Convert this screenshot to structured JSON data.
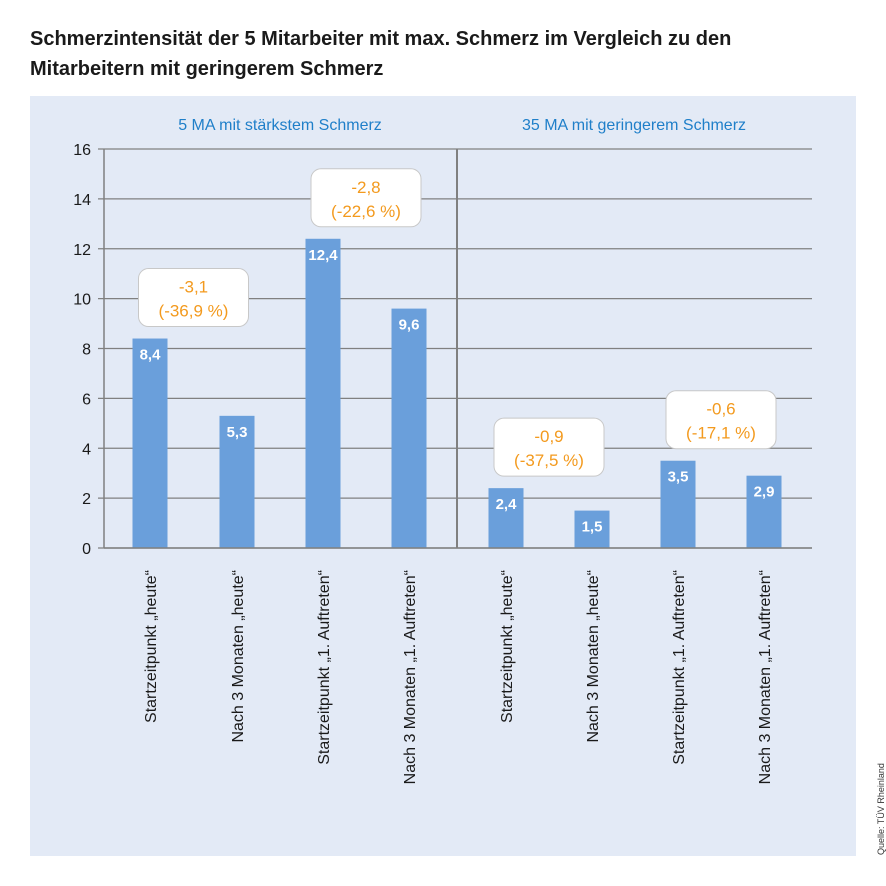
{
  "title": "Schmerzintensität der 5 Mitarbeiter mit max. Schmerz im Vergleich zu den Mitarbeitern mit geringerem Schmerz",
  "source": "Quelle: TÜV Rheinland",
  "colors": {
    "panel": "#e3eaf6",
    "bar": "#6a9fdb",
    "group_label": "#1f7fc9",
    "annotation": "#f39a1e",
    "grid": "#808080"
  },
  "chart_data": {
    "type": "bar",
    "ylim": [
      0,
      16
    ],
    "yticks": [
      "0",
      "2",
      "4",
      "6",
      "8",
      "10",
      "12",
      "14",
      "16"
    ],
    "grid": true,
    "groups": [
      {
        "label": "5 MA mit stärkstem Schmerz",
        "categories": [
          "Startzeitpunkt „heute“",
          "Nach 3 Monaten „heute“",
          "Startzeitpunkt „1. Auftreten“",
          "Nach 3 Monaten „1. Auftreten“"
        ],
        "values": [
          8.4,
          5.3,
          12.4,
          9.6
        ],
        "value_labels": [
          "8,4",
          "5,3",
          "12,4",
          "9,6"
        ]
      },
      {
        "label": "35 MA mit geringerem Schmerz",
        "categories": [
          "Startzeitpunkt „heute“",
          "Nach 3 Monaten „heute“",
          "Startzeitpunkt „1. Auftreten“",
          "Nach 3 Monaten „1. Auftreten“"
        ],
        "values": [
          2.4,
          1.5,
          3.5,
          2.9
        ],
        "value_labels": [
          "2,4",
          "1,5",
          "3,5",
          "2,9"
        ]
      }
    ],
    "annotations": [
      {
        "line1": "-3,1",
        "line2": "(-36,9 %)"
      },
      {
        "line1": "-2,8",
        "line2": "(-22,6 %)"
      },
      {
        "line1": "-0,9",
        "line2": "(-37,5 %)"
      },
      {
        "line1": "-0,6",
        "line2": "(-17,1 %)"
      }
    ]
  }
}
